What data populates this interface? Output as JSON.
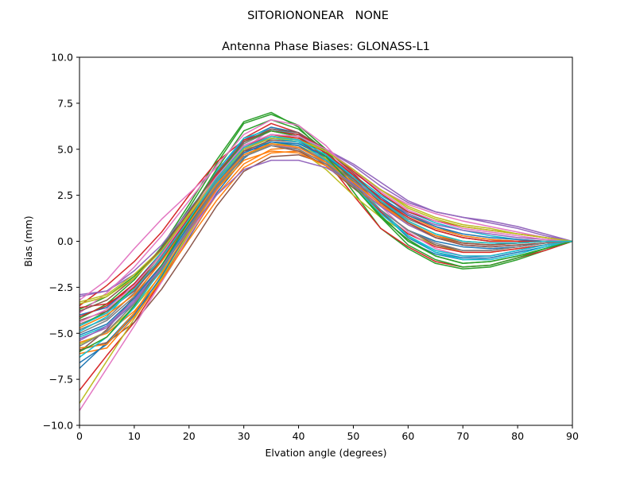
{
  "chart_data": {
    "type": "line",
    "suptitle": "SITORIONONEAR   NONE",
    "title": "Antenna Phase Biases: GLONASS-L1",
    "xlabel": "Elvation angle (degrees)",
    "ylabel": "Bias (mm)",
    "xlim": [
      0,
      90
    ],
    "ylim": [
      -10,
      10
    ],
    "xticks": [
      0,
      10,
      20,
      30,
      40,
      50,
      60,
      70,
      80,
      90
    ],
    "yticks": [
      -10.0,
      -7.5,
      -5.0,
      -2.5,
      0.0,
      2.5,
      5.0,
      7.5,
      10.0
    ],
    "grid": false,
    "legend": "none",
    "x": [
      0,
      5,
      10,
      15,
      20,
      25,
      30,
      35,
      40,
      45,
      50,
      55,
      60,
      65,
      70,
      75,
      80,
      85,
      90
    ],
    "series": [
      {
        "color": "#1f77b4",
        "values": [
          -6.9,
          -5.5,
          -3.9,
          -2.2,
          0.2,
          2.6,
          4.5,
          5.6,
          5.5,
          4.5,
          3.0,
          1.4,
          0.0,
          -0.7,
          -1.0,
          -0.9,
          -0.6,
          -0.3,
          0.0
        ]
      },
      {
        "color": "#ff7f0e",
        "values": [
          -5.5,
          -5.0,
          -3.8,
          -2.0,
          0.3,
          2.5,
          4.2,
          5.0,
          5.1,
          4.4,
          3.3,
          2.0,
          0.9,
          0.2,
          -0.2,
          -0.3,
          -0.2,
          -0.1,
          0.0
        ]
      },
      {
        "color": "#2ca02c",
        "values": [
          -4.2,
          -3.4,
          -2.1,
          -0.3,
          2.0,
          4.4,
          6.5,
          7.0,
          6.2,
          4.7,
          2.7,
          0.7,
          -0.4,
          -1.2,
          -1.5,
          -1.4,
          -1.0,
          -0.5,
          0.0
        ]
      },
      {
        "color": "#d62728",
        "values": [
          -8.1,
          -6.2,
          -4.4,
          -2.1,
          0.4,
          3.0,
          5.6,
          6.4,
          5.9,
          4.4,
          2.5,
          0.7,
          -0.3,
          -1.1,
          -1.4,
          -1.3,
          -0.9,
          -0.5,
          0.0
        ]
      },
      {
        "color": "#9467bd",
        "values": [
          -3.0,
          -2.7,
          -1.8,
          -0.5,
          1.4,
          3.4,
          5.2,
          5.8,
          5.6,
          5.0,
          4.1,
          3.0,
          2.1,
          1.6,
          1.3,
          1.0,
          0.7,
          0.3,
          0.0
        ]
      },
      {
        "color": "#8c564b",
        "values": [
          -5.9,
          -5.5,
          -4.4,
          -2.6,
          -0.4,
          1.9,
          3.8,
          4.6,
          4.7,
          4.2,
          3.2,
          2.2,
          1.3,
          0.6,
          0.2,
          0.0,
          0.0,
          0.0,
          0.0
        ]
      },
      {
        "color": "#e377c2",
        "values": [
          -9.2,
          -6.9,
          -4.6,
          -2.2,
          0.3,
          2.7,
          5.0,
          6.1,
          5.9,
          5.0,
          3.6,
          2.2,
          1.0,
          0.3,
          -0.1,
          -0.2,
          -0.1,
          0.0,
          0.0
        ]
      },
      {
        "color": "#7f7f7f",
        "values": [
          -4.8,
          -4.2,
          -2.8,
          -0.8,
          1.4,
          3.5,
          5.3,
          6.0,
          5.8,
          5.0,
          3.9,
          2.6,
          1.5,
          0.8,
          0.3,
          0.1,
          0.0,
          0.0,
          0.0
        ]
      },
      {
        "color": "#bcbd22",
        "values": [
          -8.8,
          -6.5,
          -4.2,
          -2.0,
          0.4,
          2.9,
          5.0,
          5.3,
          5.0,
          3.9,
          2.5,
          1.3,
          0.4,
          -0.2,
          -0.6,
          -0.6,
          -0.4,
          -0.2,
          0.0
        ]
      },
      {
        "color": "#17becf",
        "values": [
          -5.2,
          -4.6,
          -3.4,
          -1.6,
          0.8,
          3.2,
          4.9,
          5.4,
          5.3,
          4.6,
          3.6,
          2.5,
          1.6,
          1.0,
          0.6,
          0.3,
          0.1,
          0.0,
          0.0
        ]
      },
      {
        "color": "#1f77b4",
        "values": [
          -4.0,
          -3.6,
          -2.3,
          -0.6,
          1.5,
          3.8,
          5.5,
          6.2,
          5.9,
          4.8,
          3.2,
          1.6,
          0.2,
          -0.6,
          -0.9,
          -0.8,
          -0.5,
          -0.2,
          0.0
        ]
      },
      {
        "color": "#ff7f0e",
        "values": [
          -6.1,
          -5.8,
          -4.1,
          -2.1,
          0.1,
          2.2,
          4.0,
          4.8,
          4.9,
          4.3,
          3.4,
          2.3,
          1.4,
          0.7,
          0.3,
          0.1,
          0.0,
          0.0,
          0.0
        ]
      },
      {
        "color": "#2ca02c",
        "values": [
          -3.7,
          -3.0,
          -1.9,
          -0.4,
          1.8,
          4.2,
          6.4,
          6.9,
          6.3,
          5.0,
          3.2,
          1.3,
          -0.2,
          -1.0,
          -1.4,
          -1.3,
          -0.9,
          -0.4,
          0.0
        ]
      },
      {
        "color": "#d62728",
        "values": [
          -3.5,
          -2.4,
          -1.1,
          0.5,
          2.5,
          4.3,
          5.5,
          6.0,
          5.7,
          4.6,
          3.1,
          1.6,
          0.4,
          -0.3,
          -0.6,
          -0.6,
          -0.4,
          -0.2,
          0.0
        ]
      },
      {
        "color": "#9467bd",
        "values": [
          -2.9,
          -2.7,
          -1.6,
          -0.2,
          1.7,
          3.6,
          5.0,
          5.6,
          5.5,
          5.0,
          4.2,
          3.2,
          2.2,
          1.6,
          1.3,
          1.1,
          0.8,
          0.4,
          0.0
        ]
      },
      {
        "color": "#8c564b",
        "values": [
          -6.0,
          -4.8,
          -3.0,
          -1.0,
          1.2,
          3.4,
          4.9,
          5.2,
          4.9,
          4.1,
          2.9,
          1.7,
          0.6,
          -0.2,
          -0.5,
          -0.5,
          -0.3,
          -0.1,
          0.0
        ]
      },
      {
        "color": "#e377c2",
        "values": [
          -3.2,
          -2.1,
          -0.4,
          1.2,
          2.6,
          4.0,
          5.0,
          5.2,
          5.1,
          4.5,
          3.7,
          2.8,
          2.0,
          1.5,
          1.1,
          0.8,
          0.5,
          0.2,
          0.0
        ]
      },
      {
        "color": "#7f7f7f",
        "values": [
          -4.5,
          -3.9,
          -2.6,
          -0.9,
          1.2,
          3.3,
          5.0,
          5.7,
          5.5,
          4.7,
          3.5,
          2.1,
          1.0,
          0.3,
          -0.1,
          -0.2,
          -0.1,
          0.0,
          0.0
        ]
      },
      {
        "color": "#bcbd22",
        "values": [
          -5.6,
          -4.9,
          -3.6,
          -1.8,
          0.5,
          2.8,
          4.6,
          5.3,
          5.2,
          4.5,
          3.4,
          2.2,
          1.1,
          0.4,
          0.0,
          -0.1,
          -0.1,
          0.0,
          0.0
        ]
      },
      {
        "color": "#17becf",
        "values": [
          -4.9,
          -4.1,
          -2.4,
          -0.6,
          1.6,
          3.8,
          5.6,
          6.1,
          5.8,
          4.8,
          3.3,
          1.7,
          0.3,
          -0.6,
          -1.0,
          -1.0,
          -0.7,
          -0.3,
          0.0
        ]
      },
      {
        "color": "#1f77b4",
        "values": [
          -6.6,
          -5.6,
          -4.0,
          -1.9,
          0.6,
          3.0,
          4.8,
          5.4,
          5.2,
          4.3,
          3.0,
          1.7,
          0.6,
          0.0,
          -0.3,
          -0.4,
          -0.3,
          -0.1,
          0.0
        ]
      },
      {
        "color": "#ff7f0e",
        "values": [
          -5.8,
          -5.6,
          -3.9,
          -1.7,
          0.6,
          2.8,
          4.4,
          4.9,
          4.8,
          4.1,
          3.0,
          1.9,
          0.9,
          0.2,
          -0.1,
          -0.2,
          -0.1,
          0.0,
          0.0
        ]
      },
      {
        "color": "#2ca02c",
        "values": [
          -4.6,
          -3.8,
          -2.5,
          -0.7,
          1.5,
          3.9,
          6.0,
          6.6,
          6.1,
          4.9,
          3.2,
          1.4,
          0.0,
          -0.8,
          -1.2,
          -1.1,
          -0.8,
          -0.4,
          0.0
        ]
      },
      {
        "color": "#d62728",
        "values": [
          -3.6,
          -3.4,
          -2.5,
          -0.9,
          1.3,
          3.6,
          5.4,
          6.0,
          5.8,
          5.0,
          3.8,
          2.6,
          1.6,
          1.1,
          0.8,
          0.6,
          0.4,
          0.2,
          0.0
        ]
      },
      {
        "color": "#9467bd",
        "values": [
          -5.3,
          -4.7,
          -3.3,
          -1.4,
          0.6,
          2.5,
          3.9,
          4.4,
          4.4,
          4.0,
          3.2,
          2.3,
          1.5,
          0.9,
          0.6,
          0.4,
          0.2,
          0.1,
          0.0
        ]
      },
      {
        "color": "#8c564b",
        "values": [
          -4.3,
          -3.8,
          -2.7,
          -1.0,
          1.1,
          3.2,
          4.9,
          5.5,
          5.4,
          4.6,
          3.4,
          2.1,
          1.0,
          0.3,
          -0.1,
          -0.2,
          -0.1,
          0.0,
          0.0
        ]
      },
      {
        "color": "#e377c2",
        "values": [
          -3.9,
          -2.8,
          -1.4,
          0.3,
          2.2,
          4.1,
          5.8,
          6.6,
          6.3,
          5.2,
          3.6,
          1.9,
          0.5,
          -0.4,
          -0.8,
          -0.8,
          -0.5,
          -0.2,
          0.0
        ]
      },
      {
        "color": "#7f7f7f",
        "values": [
          -5.0,
          -4.3,
          -3.0,
          -1.3,
          0.8,
          3.0,
          4.7,
          5.3,
          5.1,
          4.4,
          3.3,
          2.2,
          1.2,
          0.6,
          0.2,
          0.0,
          0.0,
          0.0,
          0.0
        ]
      },
      {
        "color": "#bcbd22",
        "values": [
          -3.3,
          -2.9,
          -1.8,
          -0.4,
          1.5,
          3.5,
          5.1,
          5.7,
          5.6,
          4.9,
          3.9,
          2.8,
          1.8,
          1.2,
          0.8,
          0.6,
          0.4,
          0.2,
          0.0
        ]
      },
      {
        "color": "#17becf",
        "values": [
          -6.3,
          -5.2,
          -3.6,
          -1.5,
          0.9,
          3.2,
          5.0,
          5.6,
          5.4,
          4.4,
          3.0,
          1.5,
          0.3,
          -0.5,
          -0.8,
          -0.8,
          -0.5,
          -0.2,
          0.0
        ]
      },
      {
        "color": "#1f77b4",
        "values": [
          -5.1,
          -4.5,
          -3.1,
          -1.3,
          0.9,
          3.1,
          4.8,
          5.4,
          5.3,
          4.6,
          3.5,
          2.4,
          1.4,
          0.8,
          0.4,
          0.2,
          0.1,
          0.0,
          0.0
        ]
      },
      {
        "color": "#ff7f0e",
        "values": [
          -4.7,
          -4.0,
          -2.9,
          -1.1,
          1.0,
          3.1,
          4.7,
          5.3,
          5.1,
          4.3,
          3.2,
          2.0,
          1.0,
          0.3,
          0.0,
          -0.1,
          -0.1,
          0.0,
          0.0
        ]
      },
      {
        "color": "#2ca02c",
        "values": [
          -6.0,
          -5.2,
          -3.5,
          -1.3,
          1.1,
          3.5,
          5.4,
          6.0,
          5.7,
          4.6,
          3.0,
          1.3,
          0.1,
          -0.8,
          -1.2,
          -1.1,
          -0.8,
          -0.4,
          0.0
        ]
      },
      {
        "color": "#d62728",
        "values": [
          -4.1,
          -3.5,
          -2.3,
          -0.7,
          1.3,
          3.4,
          5.1,
          5.8,
          5.6,
          4.8,
          3.6,
          2.3,
          1.3,
          0.6,
          0.2,
          0.0,
          0.0,
          0.0,
          0.0
        ]
      },
      {
        "color": "#9467bd",
        "values": [
          -5.4,
          -4.6,
          -3.2,
          -1.4,
          0.7,
          2.9,
          4.6,
          5.2,
          5.0,
          4.2,
          3.1,
          1.9,
          0.9,
          0.2,
          -0.2,
          -0.3,
          -0.2,
          -0.1,
          0.0
        ]
      },
      {
        "color": "#8c564b",
        "values": [
          -3.8,
          -3.2,
          -2.0,
          -0.4,
          1.6,
          3.7,
          5.4,
          6.1,
          5.9,
          5.0,
          3.7,
          2.2,
          1.0,
          0.2,
          -0.2,
          -0.3,
          -0.2,
          -0.1,
          0.0
        ]
      },
      {
        "color": "#e377c2",
        "values": [
          -4.4,
          -3.7,
          -2.4,
          -0.7,
          1.4,
          3.5,
          5.2,
          5.8,
          5.7,
          5.0,
          3.9,
          2.7,
          1.7,
          1.1,
          0.7,
          0.5,
          0.3,
          0.1,
          0.0
        ]
      },
      {
        "color": "#7f7f7f",
        "values": [
          -5.7,
          -4.9,
          -3.4,
          -1.5,
          0.7,
          2.9,
          4.6,
          5.2,
          5.0,
          4.2,
          3.0,
          1.7,
          0.6,
          -0.1,
          -0.5,
          -0.5,
          -0.3,
          -0.1,
          0.0
        ]
      },
      {
        "color": "#bcbd22",
        "values": [
          -3.4,
          -3.0,
          -2.0,
          -0.5,
          1.4,
          3.4,
          5.0,
          5.6,
          5.5,
          4.9,
          3.9,
          2.8,
          1.9,
          1.3,
          0.9,
          0.7,
          0.4,
          0.2,
          0.0
        ]
      },
      {
        "color": "#17becf",
        "values": [
          -4.6,
          -3.9,
          -2.6,
          -0.9,
          1.2,
          3.4,
          5.1,
          5.7,
          5.5,
          4.7,
          3.5,
          2.2,
          1.1,
          0.4,
          0.0,
          -0.1,
          -0.1,
          0.0,
          0.0
        ]
      }
    ]
  }
}
